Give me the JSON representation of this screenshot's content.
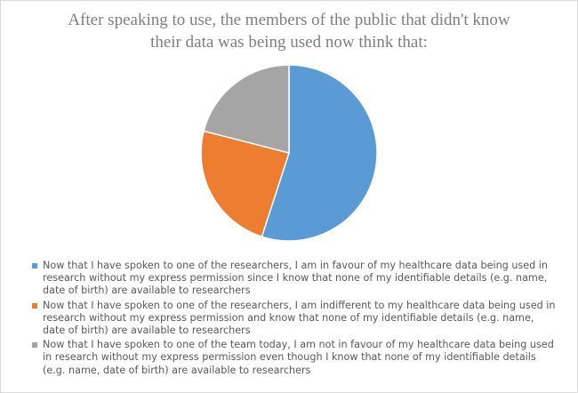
{
  "chart_data": {
    "type": "pie",
    "title_lines": [
      "After speaking to use, the members of the public that didn't know",
      "their data was being used now think that:"
    ],
    "slices": [
      {
        "label": "Now that I have spoken to one of the researchers, I am in favour of my healthcare data being used in research without my express permission since I know that none of my identifiable details (e.g. name, date of birth) are available to researchers",
        "value": 55,
        "color": "#5b9bd5"
      },
      {
        "label": "Now that I have spoken to one of the researchers, I am indifferent to my healthcare data being used in research without my express permission and know that none of my identifiable details (e.g. name, date of birth) are available to researchers",
        "value": 24,
        "color": "#ed7d31"
      },
      {
        "label": "Now that I have spoken to one of the team today, I am not in favour of my healthcare data being used in research without my express permission even though I know that none of my identifiable details (e.g. name, date of birth) are available to researchers",
        "value": 21,
        "color": "#a5a5a5"
      }
    ],
    "legend_position": "bottom"
  }
}
